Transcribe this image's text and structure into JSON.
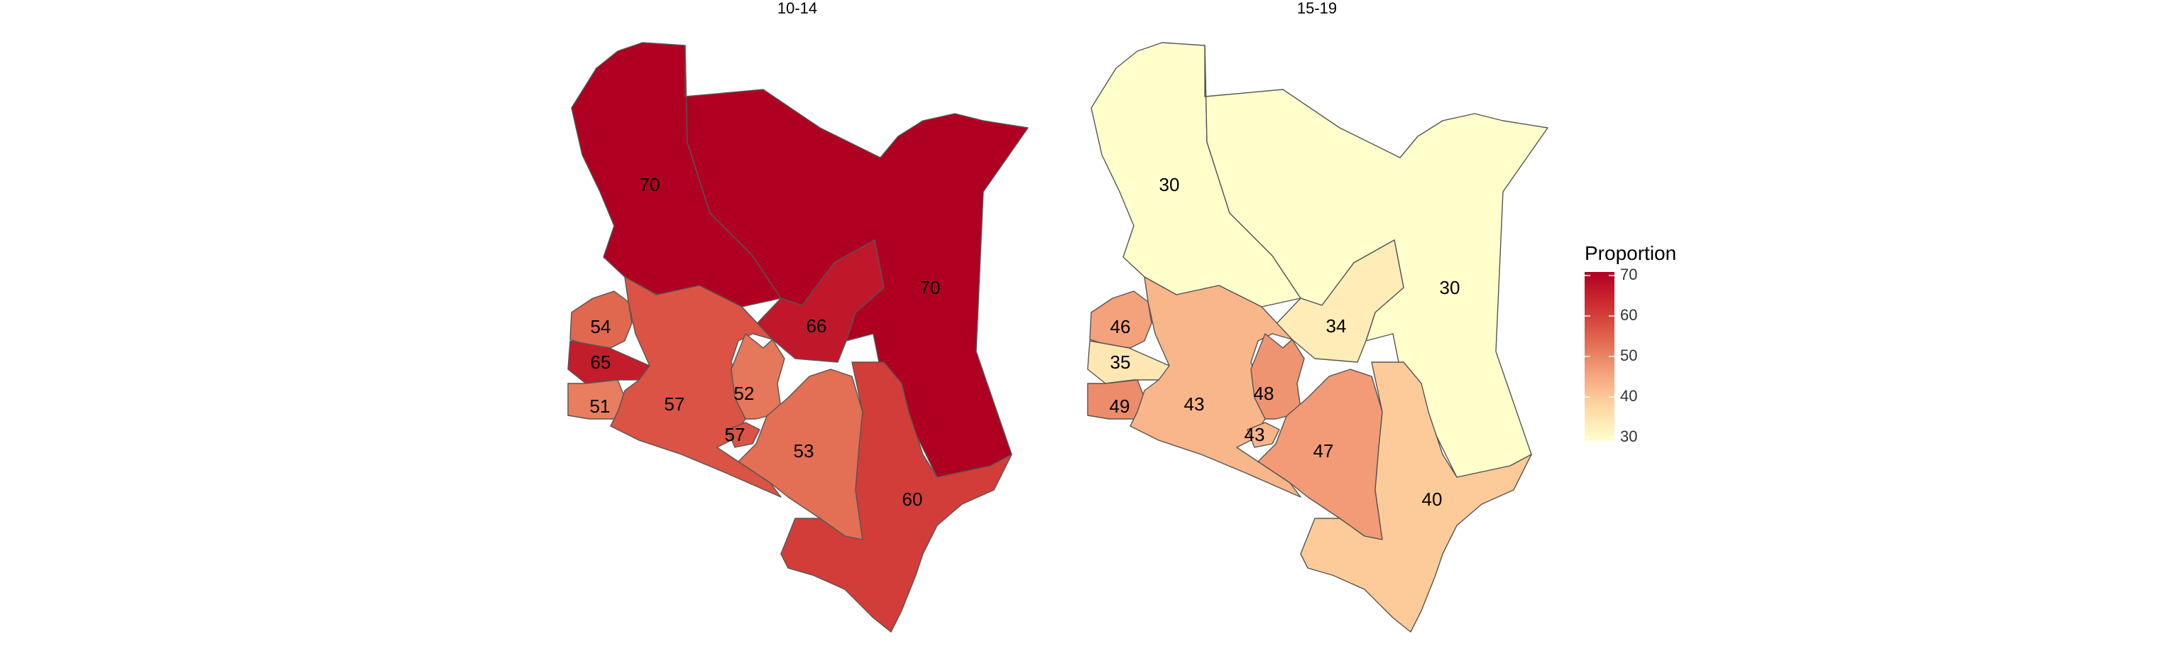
{
  "panels": [
    {
      "title": "10-14",
      "regions": [
        {
          "id": "northwest",
          "value": 70
        },
        {
          "id": "northeast",
          "value": 70
        },
        {
          "id": "east-central",
          "value": 66
        },
        {
          "id": "west-upper",
          "value": 54
        },
        {
          "id": "west-mid",
          "value": 65
        },
        {
          "id": "west-lower",
          "value": 51
        },
        {
          "id": "rift-south",
          "value": 57
        },
        {
          "id": "central",
          "value": 52
        },
        {
          "id": "nairobi",
          "value": 57
        },
        {
          "id": "southeast-inner",
          "value": 53
        },
        {
          "id": "coast",
          "value": 60
        }
      ]
    },
    {
      "title": "15-19",
      "regions": [
        {
          "id": "northwest",
          "value": 30
        },
        {
          "id": "northeast",
          "value": 30
        },
        {
          "id": "east-central",
          "value": 34
        },
        {
          "id": "west-upper",
          "value": 46
        },
        {
          "id": "west-mid",
          "value": 35
        },
        {
          "id": "west-lower",
          "value": 49
        },
        {
          "id": "rift-south",
          "value": 43
        },
        {
          "id": "central",
          "value": 48
        },
        {
          "id": "nairobi",
          "value": 43
        },
        {
          "id": "southeast-inner",
          "value": 47
        },
        {
          "id": "coast",
          "value": 40
        }
      ]
    }
  ],
  "legend": {
    "title": "Proportion",
    "min": 30,
    "max": 70,
    "ticks": [
      30,
      40,
      50,
      60,
      70
    ],
    "colors": [
      "#ffffcc",
      "#fed8a2",
      "#f4a27c",
      "#e0684e",
      "#cf2f32",
      "#b00021"
    ]
  }
}
